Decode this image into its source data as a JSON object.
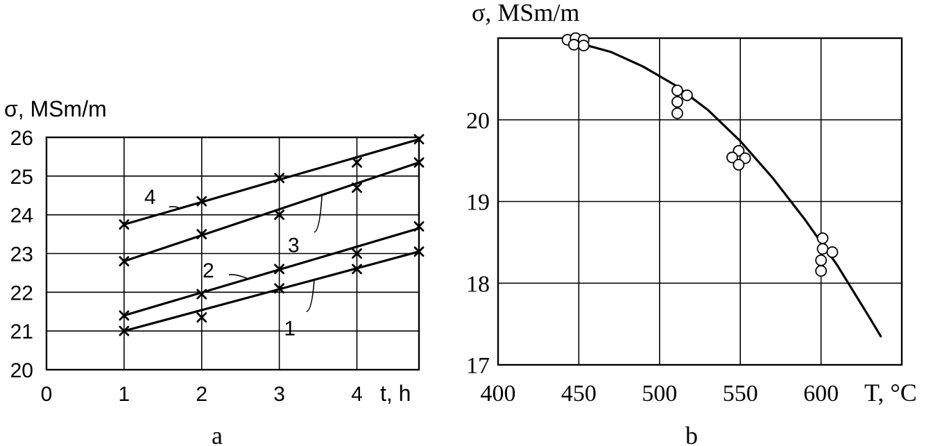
{
  "chart_data": [
    {
      "type": "line",
      "panel": "a",
      "ylabel": "σ, MSm/m",
      "xlabel": "t, h",
      "xlim": [
        0,
        4.8
      ],
      "ylim": [
        20,
        26
      ],
      "xticks": [
        "0",
        "1",
        "2",
        "3",
        "4"
      ],
      "yticks": [
        "20",
        "21",
        "22",
        "23",
        "24",
        "25",
        "26"
      ],
      "grid": true,
      "marker": "cross",
      "series": [
        {
          "name": "1",
          "x": [
            1,
            2,
            3,
            4,
            4.8
          ],
          "y": [
            21.0,
            21.35,
            22.1,
            22.6,
            23.05
          ],
          "fit": [
            21.0,
            23.05
          ]
        },
        {
          "name": "2",
          "x": [
            1,
            2,
            3,
            4,
            4.8
          ],
          "y": [
            21.4,
            21.95,
            22.6,
            23.0,
            23.7
          ],
          "fit": [
            21.4,
            23.65
          ]
        },
        {
          "name": "3",
          "x": [
            1,
            2,
            3,
            4,
            4.8
          ],
          "y": [
            22.8,
            23.5,
            24.0,
            24.7,
            25.35
          ],
          "fit": [
            22.8,
            25.35
          ]
        },
        {
          "name": "4",
          "x": [
            1,
            2,
            3,
            4,
            4.8
          ],
          "y": [
            23.75,
            24.35,
            24.95,
            25.35,
            25.95
          ],
          "fit": [
            23.75,
            25.95
          ]
        }
      ]
    },
    {
      "type": "scatter",
      "panel": "b",
      "ylabel": "σ, MSm/m",
      "xlabel": "T, °C",
      "xlim": [
        400,
        650
      ],
      "ylim": [
        17,
        21
      ],
      "xticks": [
        "400",
        "450",
        "500",
        "550",
        "600"
      ],
      "yticks": [
        "17",
        "18",
        "19",
        "20"
      ],
      "grid": true,
      "marker": "open-circle",
      "points": [
        {
          "x": 443,
          "y": 20.98
        },
        {
          "x": 448,
          "y": 21.0
        },
        {
          "x": 453,
          "y": 20.98
        },
        {
          "x": 447,
          "y": 20.92
        },
        {
          "x": 453,
          "y": 20.91
        },
        {
          "x": 511,
          "y": 20.36
        },
        {
          "x": 517,
          "y": 20.3
        },
        {
          "x": 511,
          "y": 20.22
        },
        {
          "x": 511,
          "y": 20.08
        },
        {
          "x": 549,
          "y": 19.62
        },
        {
          "x": 545,
          "y": 19.54
        },
        {
          "x": 553,
          "y": 19.53
        },
        {
          "x": 549,
          "y": 19.45
        },
        {
          "x": 601,
          "y": 18.55
        },
        {
          "x": 601,
          "y": 18.42
        },
        {
          "x": 607,
          "y": 18.38
        },
        {
          "x": 600,
          "y": 18.28
        },
        {
          "x": 600,
          "y": 18.15
        }
      ],
      "curve": {
        "x": [
          446,
          470,
          490,
          510,
          530,
          550,
          570,
          590,
          610,
          630,
          637
        ],
        "y": [
          20.96,
          20.83,
          20.65,
          20.42,
          20.12,
          19.74,
          19.29,
          18.78,
          18.22,
          17.58,
          17.35
        ]
      }
    }
  ]
}
